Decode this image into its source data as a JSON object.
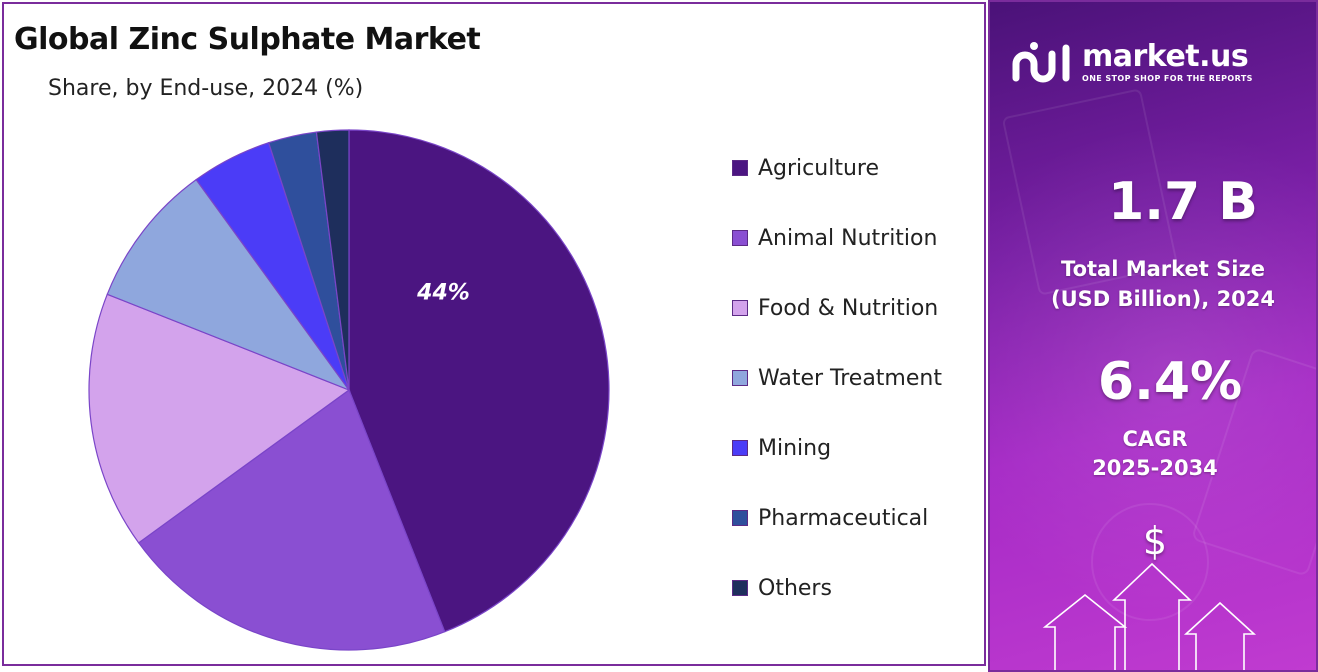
{
  "title": "Global Zinc Sulphate Market",
  "subtitle": "Share, by End-use, 2024 (%)",
  "chart_data": {
    "type": "pie",
    "title": "Global Zinc Sulphate Market",
    "subtitle": "Share, by End-use, 2024 (%)",
    "categories": [
      "Agriculture",
      "Animal Nutrition",
      "Food & Nutrition",
      "Water Treatment",
      "Mining",
      "Pharmaceutical",
      "Others"
    ],
    "values": [
      44,
      21,
      16,
      9,
      5,
      3,
      2
    ],
    "colors": [
      "#4b1581",
      "#8a4fd2",
      "#d3a3ec",
      "#8fa7dd",
      "#4b3cf7",
      "#2f4f9c",
      "#1e2e5c"
    ],
    "data_labels": [
      "44%",
      "",
      "",
      "",
      "",
      "",
      ""
    ],
    "legend_position": "right"
  },
  "side_panel": {
    "brand": "market.us",
    "tagline": "ONE STOP SHOP FOR THE REPORTS",
    "market_size_value": "1.7 B",
    "market_size_label_line1": "Total Market Size",
    "market_size_label_line2": "(USD Billion), 2024",
    "cagr_value": "6.4%",
    "cagr_label_line1": "CAGR",
    "cagr_label_line2": "2025-2034",
    "currency_symbol": "$"
  }
}
